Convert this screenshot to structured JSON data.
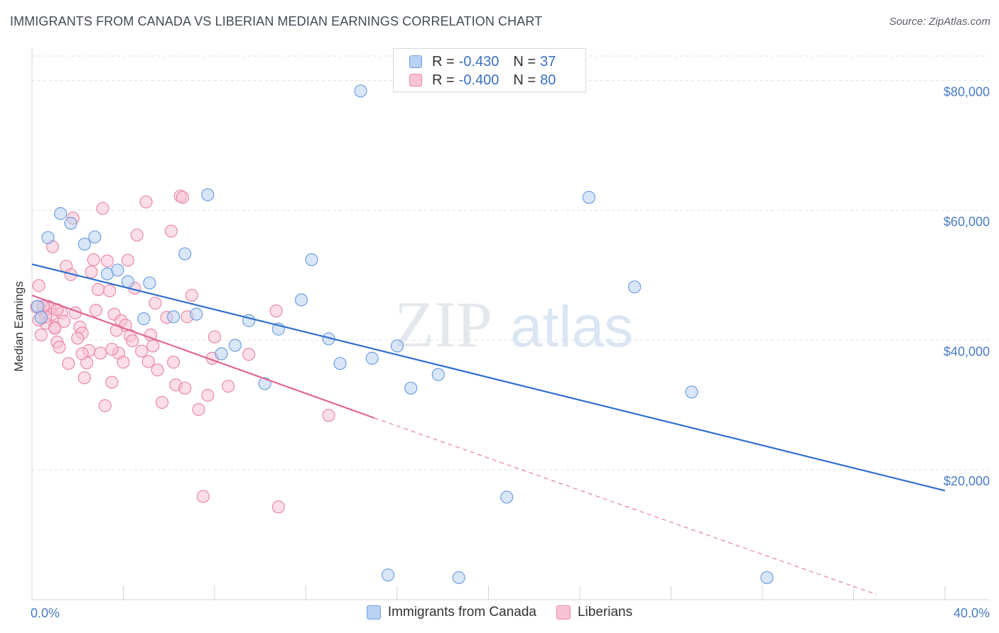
{
  "header": {
    "title": "IMMIGRANTS FROM CANADA VS LIBERIAN MEDIAN EARNINGS CORRELATION CHART",
    "source": "Source: ZipAtlas.com"
  },
  "legend": {
    "rows": [
      {
        "r_label": "R = ",
        "r_value": "-0.430",
        "n_label": "N = ",
        "n_value": "37"
      },
      {
        "r_label": "R = ",
        "r_value": "-0.400",
        "n_label": "N = ",
        "n_value": "80"
      }
    ]
  },
  "watermark": {
    "zip": "ZIP",
    "atlas": "atlas"
  },
  "colors": {
    "blue_fill": "#b9d1f3",
    "blue_stroke": "#6f9fe0",
    "blue_line": "#2f6fcf",
    "pink_fill": "#f7c3d4",
    "pink_stroke": "#e88aa8",
    "pink_line": "#e06892",
    "grid": "#dde1e6",
    "tick_text": "#4a7cc4"
  },
  "chart_data": {
    "type": "scatter",
    "title": "IMMIGRANTS FROM CANADA VS LIBERIAN MEDIAN EARNINGS CORRELATION CHART",
    "xlabel": "",
    "ylabel": "Median Earnings",
    "xlim": [
      0,
      40
    ],
    "ylim": [
      0,
      84000
    ],
    "x_tick_labels": [
      "0.0%",
      "40.0%"
    ],
    "y_ticks": [
      20000,
      40000,
      60000,
      80000
    ],
    "y_tick_labels": [
      "$20,000",
      "$40,000",
      "$60,000",
      "$80,000"
    ],
    "grid": true,
    "legend_position": "bottom",
    "series": [
      {
        "name": "Immigrants from Canada",
        "color": "#6f9fe0",
        "r": -0.43,
        "n": 37,
        "trend": {
          "x": [
            0,
            40
          ],
          "y": [
            51700,
            16800
          ],
          "dashed_to": null
        },
        "points": [
          [
            0.25,
            45200
          ],
          [
            0.4,
            43500
          ],
          [
            0.7,
            55800
          ],
          [
            1.25,
            59500
          ],
          [
            1.7,
            58000
          ],
          [
            2.3,
            54800
          ],
          [
            2.75,
            55900
          ],
          [
            3.3,
            50200
          ],
          [
            3.75,
            50800
          ],
          [
            4.2,
            49000
          ],
          [
            4.9,
            43300
          ],
          [
            5.15,
            48800
          ],
          [
            6.2,
            43600
          ],
          [
            6.7,
            53300
          ],
          [
            7.2,
            44000
          ],
          [
            7.7,
            62400
          ],
          [
            8.3,
            37900
          ],
          [
            8.9,
            39200
          ],
          [
            9.5,
            43000
          ],
          [
            10.2,
            33300
          ],
          [
            10.8,
            41700
          ],
          [
            11.8,
            46200
          ],
          [
            12.25,
            52400
          ],
          [
            13.0,
            40200
          ],
          [
            13.5,
            36400
          ],
          [
            14.4,
            78400
          ],
          [
            14.9,
            37200
          ],
          [
            15.6,
            3800
          ],
          [
            16.0,
            39100
          ],
          [
            16.6,
            32600
          ],
          [
            17.8,
            34700
          ],
          [
            20.8,
            15800
          ],
          [
            24.4,
            62000
          ],
          [
            26.4,
            48200
          ],
          [
            28.9,
            32000
          ],
          [
            32.2,
            3400
          ],
          [
            18.7,
            3400
          ]
        ]
      },
      {
        "name": "Liberians",
        "color": "#e88aa8",
        "r": -0.4,
        "n": 80,
        "trend": {
          "x": [
            0,
            15
          ],
          "y": [
            46900,
            28000
          ],
          "dashed_to": [
            37,
            800
          ]
        },
        "points": [
          [
            0.2,
            45100
          ],
          [
            0.3,
            48400
          ],
          [
            0.5,
            44300
          ],
          [
            0.6,
            42600
          ],
          [
            0.7,
            45200
          ],
          [
            0.8,
            44900
          ],
          [
            0.9,
            44000
          ],
          [
            1.0,
            42000
          ],
          [
            0.4,
            40800
          ],
          [
            0.9,
            54400
          ],
          [
            1.1,
            39700
          ],
          [
            1.3,
            44200
          ],
          [
            1.5,
            51400
          ],
          [
            1.6,
            36400
          ],
          [
            1.7,
            50100
          ],
          [
            1.9,
            44200
          ],
          [
            2.1,
            42000
          ],
          [
            2.2,
            41100
          ],
          [
            2.3,
            34200
          ],
          [
            2.4,
            36500
          ],
          [
            2.5,
            38400
          ],
          [
            1.0,
            41800
          ],
          [
            2.6,
            50500
          ],
          [
            2.8,
            44600
          ],
          [
            2.9,
            47800
          ],
          [
            3.0,
            38000
          ],
          [
            3.1,
            60300
          ],
          [
            3.2,
            29900
          ],
          [
            3.3,
            52200
          ],
          [
            3.4,
            47600
          ],
          [
            3.5,
            33500
          ],
          [
            3.6,
            44000
          ],
          [
            3.8,
            38000
          ],
          [
            3.9,
            43000
          ],
          [
            4.0,
            36600
          ],
          [
            4.1,
            42300
          ],
          [
            4.2,
            52300
          ],
          [
            4.3,
            40700
          ],
          [
            4.5,
            48000
          ],
          [
            4.6,
            56200
          ],
          [
            4.8,
            38300
          ],
          [
            5.0,
            61300
          ],
          [
            5.1,
            36700
          ],
          [
            5.2,
            40800
          ],
          [
            5.3,
            39100
          ],
          [
            5.4,
            45700
          ],
          [
            5.5,
            35400
          ],
          [
            5.7,
            30400
          ],
          [
            5.9,
            43500
          ],
          [
            6.1,
            56800
          ],
          [
            6.2,
            36600
          ],
          [
            6.3,
            33100
          ],
          [
            6.5,
            62200
          ],
          [
            6.6,
            62000
          ],
          [
            6.7,
            32600
          ],
          [
            6.8,
            43600
          ],
          [
            7.0,
            46900
          ],
          [
            7.3,
            29300
          ],
          [
            7.5,
            15900
          ],
          [
            7.7,
            31500
          ],
          [
            7.9,
            37200
          ],
          [
            8.0,
            40500
          ],
          [
            8.6,
            32900
          ],
          [
            9.5,
            37800
          ],
          [
            10.7,
            44500
          ],
          [
            10.8,
            14300
          ],
          [
            13.0,
            28400
          ],
          [
            1.8,
            58800
          ],
          [
            0.5,
            45200
          ],
          [
            0.6,
            43600
          ],
          [
            1.2,
            38900
          ],
          [
            1.4,
            42900
          ],
          [
            2.0,
            40300
          ],
          [
            2.7,
            52400
          ],
          [
            3.7,
            41500
          ],
          [
            4.4,
            39900
          ],
          [
            0.3,
            43100
          ],
          [
            1.1,
            44700
          ],
          [
            2.2,
            37900
          ],
          [
            3.5,
            38600
          ]
        ]
      }
    ]
  }
}
